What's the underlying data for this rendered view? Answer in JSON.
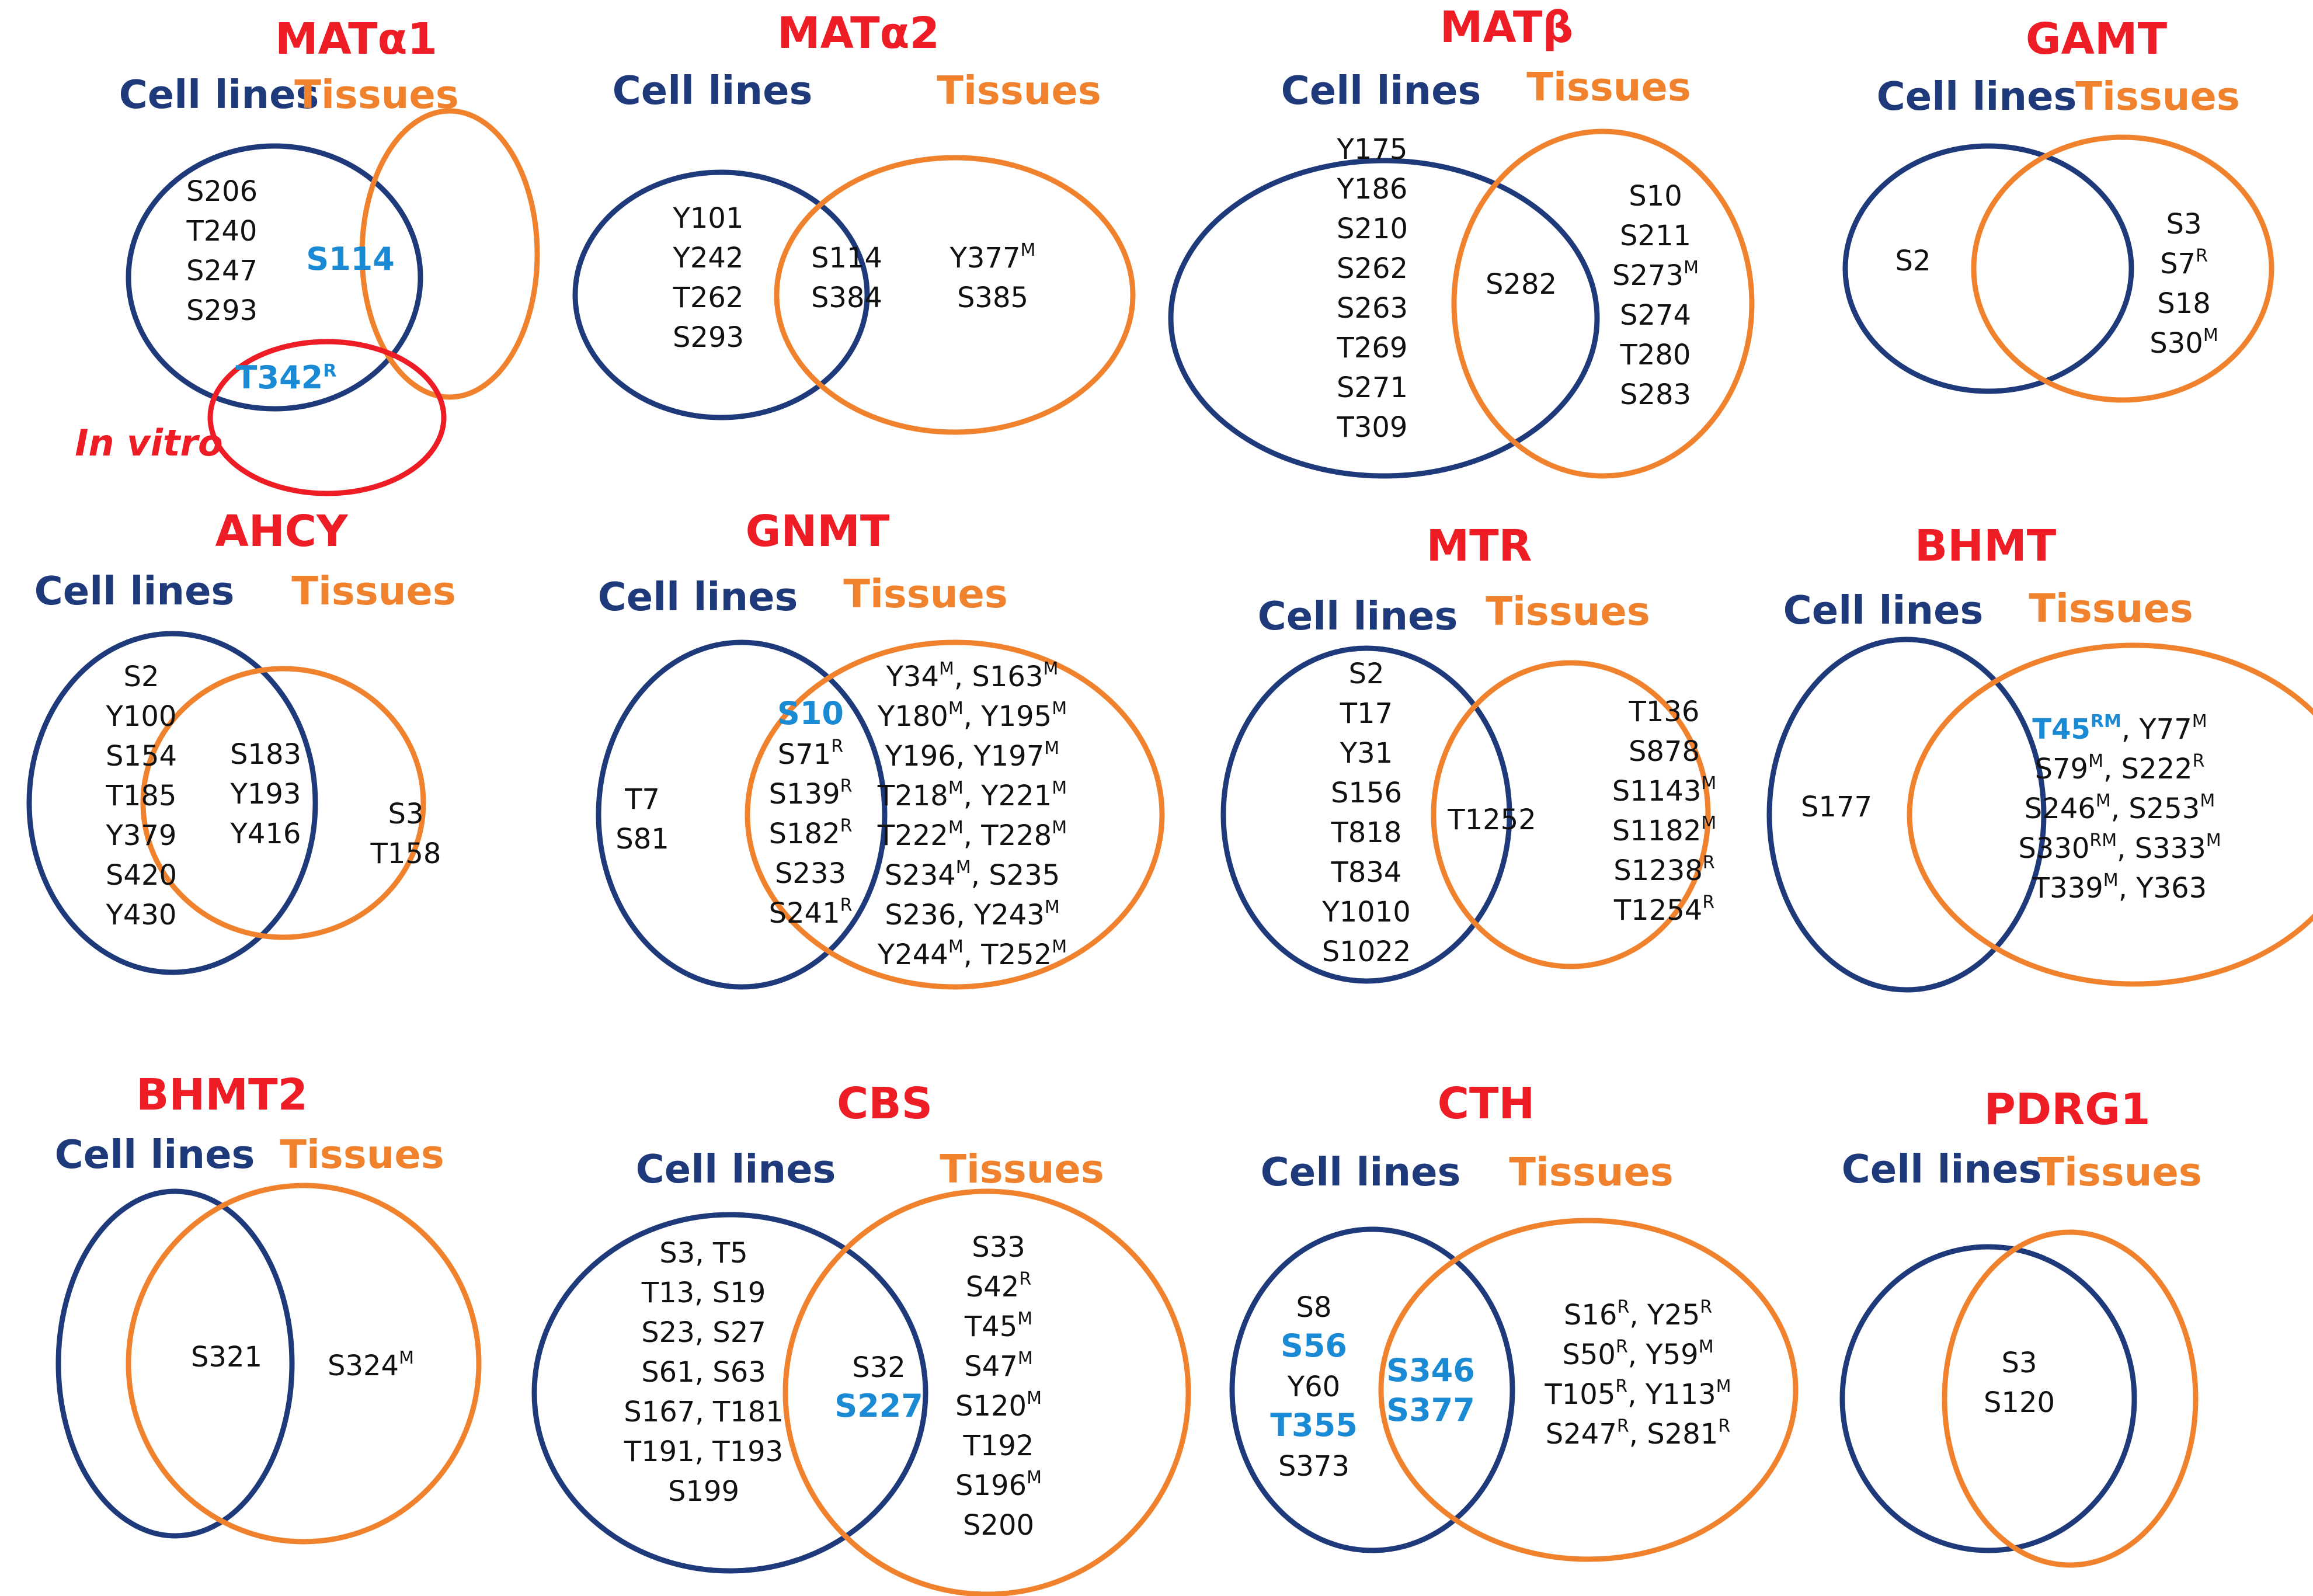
{
  "colors": {
    "title": "#ee1c24",
    "cell_lines": "#1f3a7a",
    "tissues": "#f0822e",
    "in_vitro": "#ee1c24",
    "highlight": "#1a8ad4"
  },
  "labels": {
    "cell_lines": "Cell lines",
    "tissues": "Tissues",
    "in_vitro": "In vitro"
  },
  "panels": [
    {
      "id": "mata1",
      "title": "MATα1",
      "cell_only": [
        {
          "t": "S206"
        },
        {
          "t": "T240"
        },
        {
          "t": "S247"
        },
        {
          "t": "S293"
        }
      ],
      "shared": [
        {
          "t": "S114",
          "hl": true
        }
      ],
      "tissue_only": [],
      "in_vitro": [
        {
          "t": "T342",
          "s": "R",
          "hl": true
        }
      ]
    },
    {
      "id": "mata2",
      "title": "MATα2",
      "cell_only": [
        {
          "t": "Y101"
        },
        {
          "t": "Y242"
        },
        {
          "t": "T262"
        },
        {
          "t": "S293"
        }
      ],
      "shared": [
        {
          "t": "S114"
        },
        {
          "t": "S384"
        }
      ],
      "tissue_only": [
        {
          "t": "Y377",
          "s": "M"
        },
        {
          "t": "S385"
        }
      ]
    },
    {
      "id": "matb",
      "title": "MATβ",
      "cell_only": [
        {
          "t": "Y175"
        },
        {
          "t": "Y186"
        },
        {
          "t": "S210"
        },
        {
          "t": "S262"
        },
        {
          "t": "S263"
        },
        {
          "t": "T269"
        },
        {
          "t": "S271"
        },
        {
          "t": "T309"
        }
      ],
      "shared": [
        {
          "t": "S282"
        }
      ],
      "tissue_only": [
        {
          "t": "S10"
        },
        {
          "t": "S211"
        },
        {
          "t": "S273",
          "s": "M"
        },
        {
          "t": "S274"
        },
        {
          "t": "T280"
        },
        {
          "t": "S283"
        }
      ]
    },
    {
      "id": "gamt",
      "title": "GAMT",
      "cell_only": [
        {
          "t": "S2"
        }
      ],
      "shared": [],
      "tissue_only": [
        {
          "t": "S3"
        },
        {
          "t": "S7",
          "s": "R"
        },
        {
          "t": "S18"
        },
        {
          "t": "S30",
          "s": "M"
        }
      ]
    },
    {
      "id": "ahcy",
      "title": "AHCY",
      "cell_only": [
        {
          "t": "S2"
        },
        {
          "t": "Y100"
        },
        {
          "t": "S154"
        },
        {
          "t": "T185"
        },
        {
          "t": "Y379"
        },
        {
          "t": "S420"
        },
        {
          "t": "Y430"
        }
      ],
      "shared": [
        {
          "t": "S183"
        },
        {
          "t": "Y193"
        },
        {
          "t": "Y416"
        }
      ],
      "tissue_only": [
        {
          "t": "S3"
        },
        {
          "t": "T158"
        }
      ]
    },
    {
      "id": "gnmt",
      "title": "GNMT",
      "cell_only": [
        {
          "t": "T7"
        },
        {
          "t": "S81"
        }
      ],
      "shared": [
        {
          "t": "S10",
          "hl": true
        },
        {
          "t": "S71",
          "s": "R"
        },
        {
          "t": "S139",
          "s": "R"
        },
        {
          "t": "S182",
          "s": "R"
        },
        {
          "t": "S233"
        },
        {
          "t": "S241",
          "s": "R"
        }
      ],
      "tissue_only": [
        [
          {
            "t": "Y34",
            "s": "M"
          },
          {
            "t": "S163",
            "s": "M"
          }
        ],
        [
          {
            "t": "Y180",
            "s": "M"
          },
          {
            "t": "Y195",
            "s": "M"
          }
        ],
        [
          {
            "t": "Y196"
          },
          {
            "t": "Y197",
            "s": "M"
          }
        ],
        [
          {
            "t": "T218",
            "s": "M"
          },
          {
            "t": "Y221",
            "s": "M"
          }
        ],
        [
          {
            "t": "T222",
            "s": "M"
          },
          {
            "t": "T228",
            "s": "M"
          }
        ],
        [
          {
            "t": "S234",
            "s": "M"
          },
          {
            "t": "S235"
          }
        ],
        [
          {
            "t": "S236"
          },
          {
            "t": "Y243",
            "s": "M"
          }
        ],
        [
          {
            "t": "Y244",
            "s": "M"
          },
          {
            "t": "T252",
            "s": "M"
          }
        ]
      ]
    },
    {
      "id": "mtr",
      "title": "MTR",
      "cell_only": [
        {
          "t": "S2"
        },
        {
          "t": "T17"
        },
        {
          "t": "Y31"
        },
        {
          "t": "S156"
        },
        {
          "t": "T818"
        },
        {
          "t": "T834"
        },
        {
          "t": "Y1010"
        },
        {
          "t": "S1022"
        }
      ],
      "shared": [
        {
          "t": "T1252"
        }
      ],
      "tissue_only": [
        {
          "t": "T136"
        },
        {
          "t": "S878"
        },
        {
          "t": "S1143",
          "s": "M"
        },
        {
          "t": "S1182",
          "s": "M"
        },
        {
          "t": "S1238",
          "s": "R"
        },
        {
          "t": "T1254",
          "s": "R"
        }
      ]
    },
    {
      "id": "bhmt",
      "title": "BHMT",
      "cell_only": [
        {
          "t": "S177"
        }
      ],
      "shared": [],
      "tissue_only": [
        [
          {
            "t": "T45",
            "s": "RM",
            "hl": true
          },
          {
            "t": "Y77",
            "s": "M"
          }
        ],
        [
          {
            "t": "S79",
            "s": "M"
          },
          {
            "t": "S222",
            "s": "R"
          }
        ],
        [
          {
            "t": "S246",
            "s": "M"
          },
          {
            "t": "S253",
            "s": "M"
          }
        ],
        [
          {
            "t": "S330",
            "s": "RM"
          },
          {
            "t": "S333",
            "s": "M"
          }
        ],
        [
          {
            "t": "T339",
            "s": "M"
          },
          {
            "t": "Y363"
          }
        ]
      ]
    },
    {
      "id": "bhmt2",
      "title": "BHMT2",
      "cell_only": [],
      "shared": [
        {
          "t": "S321"
        }
      ],
      "tissue_only": [
        {
          "t": "S324",
          "s": "M"
        }
      ]
    },
    {
      "id": "cbs",
      "title": "CBS",
      "cell_only": [
        [
          {
            "t": "S3"
          },
          {
            "t": "T5"
          }
        ],
        [
          {
            "t": "T13"
          },
          {
            "t": "S19"
          }
        ],
        [
          {
            "t": "S23"
          },
          {
            "t": "S27"
          }
        ],
        [
          {
            "t": "S61"
          },
          {
            "t": "S63"
          }
        ],
        [
          {
            "t": "S167"
          },
          {
            "t": "T181"
          }
        ],
        [
          {
            "t": "T191"
          },
          {
            "t": "T193"
          }
        ],
        [
          {
            "t": "S199"
          }
        ]
      ],
      "shared": [
        {
          "t": "S32"
        },
        {
          "t": "S227",
          "hl": true
        }
      ],
      "tissue_only": [
        {
          "t": "S33"
        },
        {
          "t": "S42",
          "s": "R"
        },
        {
          "t": "T45",
          "s": "M"
        },
        {
          "t": "S47",
          "s": "M"
        },
        {
          "t": "S120",
          "s": "M"
        },
        {
          "t": "T192"
        },
        {
          "t": "S196",
          "s": "M"
        },
        {
          "t": "S200"
        }
      ]
    },
    {
      "id": "cth",
      "title": "CTH",
      "cell_only": [
        {
          "t": "S8"
        },
        {
          "t": "S56",
          "hl": true
        },
        {
          "t": "Y60"
        },
        {
          "t": "T355",
          "hl": true
        },
        {
          "t": "S373"
        }
      ],
      "shared": [
        {
          "t": "S346",
          "hl": true
        },
        {
          "t": "S377",
          "hl": true
        }
      ],
      "tissue_only": [
        [
          {
            "t": "S16",
            "s": "R"
          },
          {
            "t": "Y25",
            "s": "R"
          }
        ],
        [
          {
            "t": "S50",
            "s": "R"
          },
          {
            "t": "Y59",
            "s": "M"
          }
        ],
        [
          {
            "t": "T105",
            "s": "R"
          },
          {
            "t": "Y113",
            "s": "M"
          }
        ],
        [
          {
            "t": "S247",
            "s": "R"
          },
          {
            "t": "S281",
            "s": "R"
          }
        ]
      ]
    },
    {
      "id": "pdrg1",
      "title": "PDRG1",
      "cell_only": [],
      "shared": [
        {
          "t": "S3"
        },
        {
          "t": "S120"
        }
      ],
      "tissue_only": []
    }
  ]
}
